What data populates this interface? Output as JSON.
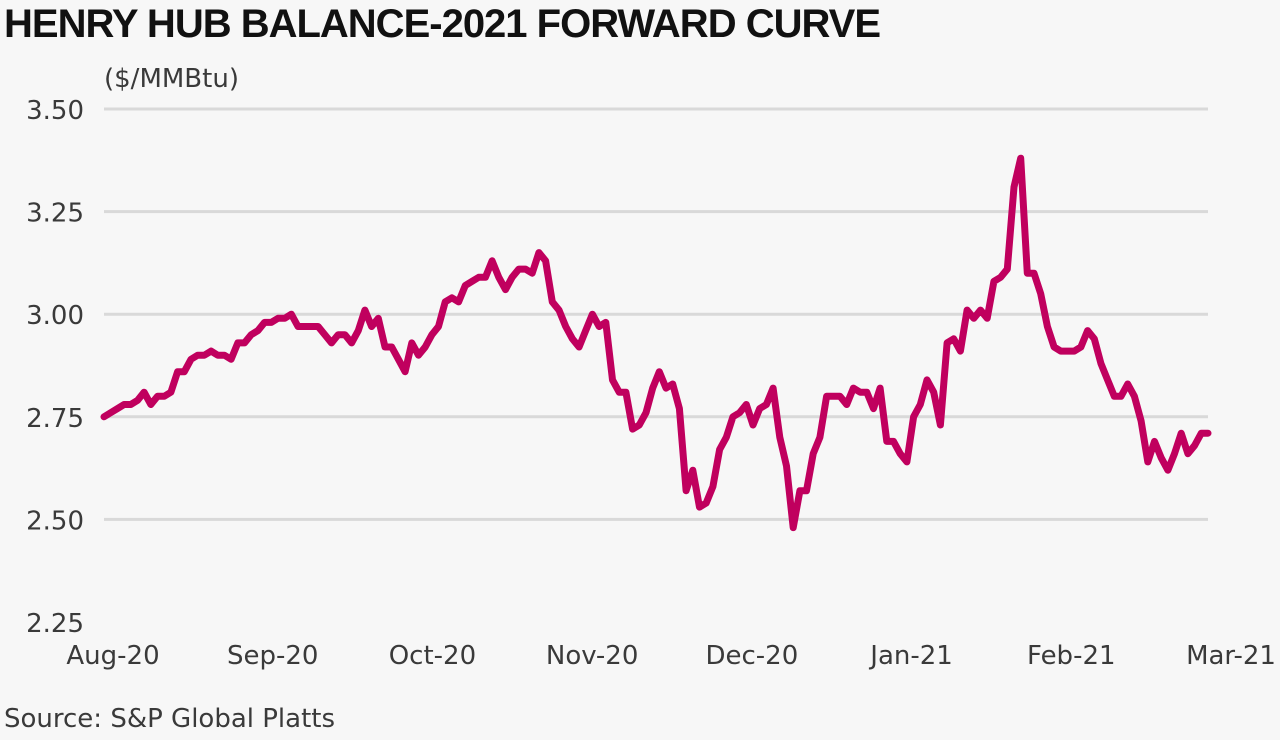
{
  "title": "HENRY HUB BALANCE-2021 FORWARD CURVE",
  "unit_label": "($/MMBtu)",
  "source": "Source: S&P Global Platts",
  "colors": {
    "line": "#c0005e",
    "grid": "#d9d9d9",
    "background": "#f7f7f7"
  },
  "chart_data": {
    "type": "line",
    "title": "HENRY HUB BALANCE-2021 FORWARD CURVE",
    "ylabel": "($/MMBtu)",
    "xlabel": "",
    "ylim": [
      2.25,
      3.5
    ],
    "y_ticks": [
      "3.50",
      "3.25",
      "3.00",
      "2.75",
      "2.50",
      "2.25"
    ],
    "x_ticks": [
      "Aug-20",
      "Sep-20",
      "Oct-20",
      "Nov-20",
      "Dec-20",
      "Jan-21",
      "Feb-21",
      "Mar-21"
    ],
    "x_range": [
      "Aug-20",
      "Mar-21"
    ],
    "grid": "horizontal",
    "legend": "none",
    "series": [
      {
        "values": [
          2.75,
          2.76,
          2.77,
          2.78,
          2.78,
          2.79,
          2.81,
          2.78,
          2.8,
          2.8,
          2.81,
          2.86,
          2.86,
          2.89,
          2.9,
          2.9,
          2.91,
          2.9,
          2.9,
          2.89,
          2.93,
          2.93,
          2.95,
          2.96,
          2.98,
          2.98,
          2.99,
          2.99,
          3.0,
          2.97,
          2.97,
          2.97,
          2.97,
          2.95,
          2.93,
          2.95,
          2.95,
          2.93,
          2.96,
          3.01,
          2.97,
          2.99,
          2.92,
          2.92,
          2.89,
          2.86,
          2.93,
          2.9,
          2.92,
          2.95,
          2.97,
          3.03,
          3.04,
          3.03,
          3.07,
          3.08,
          3.09,
          3.09,
          3.13,
          3.09,
          3.06,
          3.09,
          3.11,
          3.11,
          3.1,
          3.15,
          3.13,
          3.03,
          3.01,
          2.97,
          2.94,
          2.92,
          2.96,
          3.0,
          2.97,
          2.98,
          2.84,
          2.81,
          2.81,
          2.72,
          2.73,
          2.76,
          2.82,
          2.86,
          2.82,
          2.83,
          2.77,
          2.57,
          2.62,
          2.53,
          2.54,
          2.58,
          2.67,
          2.7,
          2.75,
          2.76,
          2.78,
          2.73,
          2.77,
          2.78,
          2.82,
          2.7,
          2.63,
          2.48,
          2.57,
          2.57,
          2.66,
          2.7,
          2.8,
          2.8,
          2.8,
          2.78,
          2.82,
          2.81,
          2.81,
          2.77,
          2.82,
          2.69,
          2.69,
          2.66,
          2.64,
          2.75,
          2.78,
          2.84,
          2.81,
          2.73,
          2.93,
          2.94,
          2.91,
          3.01,
          2.99,
          3.01,
          2.99,
          3.08,
          3.09,
          3.11,
          3.31,
          3.38,
          3.1,
          3.1,
          3.05,
          2.97,
          2.92,
          2.91,
          2.91,
          2.91,
          2.92,
          2.96,
          2.94,
          2.88,
          2.84,
          2.8,
          2.8,
          2.83,
          2.8,
          2.74,
          2.64,
          2.69,
          2.65,
          2.62,
          2.66,
          2.71,
          2.66,
          2.68,
          2.71,
          2.71
        ]
      }
    ]
  }
}
